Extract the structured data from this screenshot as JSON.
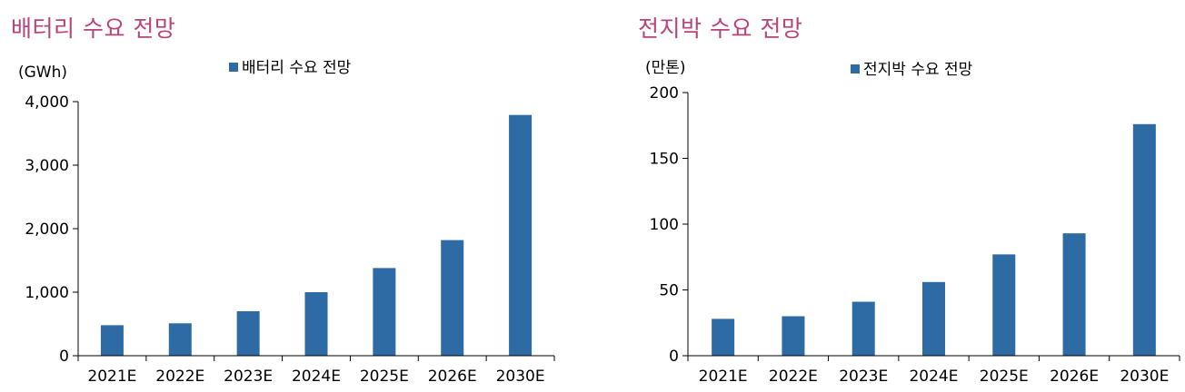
{
  "colors": {
    "title": "#b8437a",
    "bar": "#2e6aa3",
    "axis": "#000000"
  },
  "chart_data": [
    {
      "type": "bar",
      "title": "배터리 수요 전망",
      "ylabel": "(GWh)",
      "categories": [
        "2021E",
        "2022E",
        "2023E",
        "2024E",
        "2025E",
        "2026E",
        "2030E"
      ],
      "series": [
        {
          "name": "배터리 수요 전망",
          "values": [
            480,
            510,
            700,
            1000,
            1380,
            1820,
            3790
          ]
        }
      ],
      "ylim": [
        0,
        4000
      ],
      "yticks": [
        0,
        1000,
        2000,
        3000,
        4000
      ],
      "ytick_labels": [
        "0",
        "1,000",
        "2,000",
        "3,000",
        "4,000"
      ],
      "grid": false,
      "legend": "top-center"
    },
    {
      "type": "bar",
      "title": "전지박 수요 전망",
      "ylabel": "(만톤)",
      "categories": [
        "2021E",
        "2022E",
        "2023E",
        "2024E",
        "2025E",
        "2026E",
        "2030E"
      ],
      "series": [
        {
          "name": "전지박 수요 전망",
          "values": [
            28,
            30,
            41,
            56,
            77,
            93,
            176
          ]
        }
      ],
      "ylim": [
        0,
        200
      ],
      "yticks": [
        0,
        50,
        100,
        150,
        200
      ],
      "ytick_labels": [
        "0",
        "50",
        "100",
        "150",
        "200"
      ],
      "grid": false,
      "legend": "top-center"
    }
  ]
}
